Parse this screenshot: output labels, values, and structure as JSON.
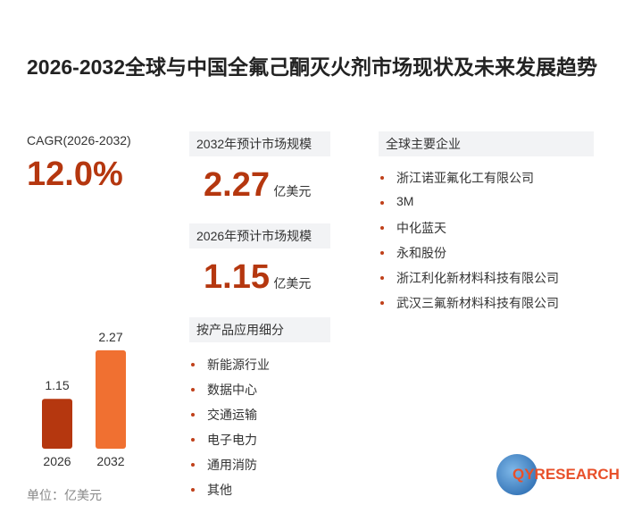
{
  "title": "2026-2032全球与中国全氟己酮灭火剂市场现状及未来发展趋势",
  "cagr": {
    "label": "CAGR(2026-2032)",
    "value": "12.0%"
  },
  "forecast": [
    {
      "label": "2032年预计市场规模"
    },
    {
      "label": "2026年预计市场规模"
    }
  ],
  "value_unit": "亿美元",
  "chart_data": {
    "type": "bar",
    "categories": [
      "2026",
      "2032"
    ],
    "values": [
      1.15,
      2.27
    ],
    "colors": [
      "#b5370f",
      "#f07031"
    ]
  },
  "unit_note": "单位：亿美元",
  "segments": {
    "title": "按产品应用细分",
    "items": [
      "新能源行业",
      "数据中心",
      "交通运输",
      "电子电力",
      "通用消防",
      "其他"
    ]
  },
  "companies": {
    "title": "全球主要企业",
    "items": [
      "浙江诺亚氟化工有限公司",
      "3M",
      "中化蓝天",
      "永和股份",
      "浙江利化新材料科技有限公司",
      "武汉三氟新材料科技有限公司"
    ]
  },
  "logo": "QYRESEARCH"
}
